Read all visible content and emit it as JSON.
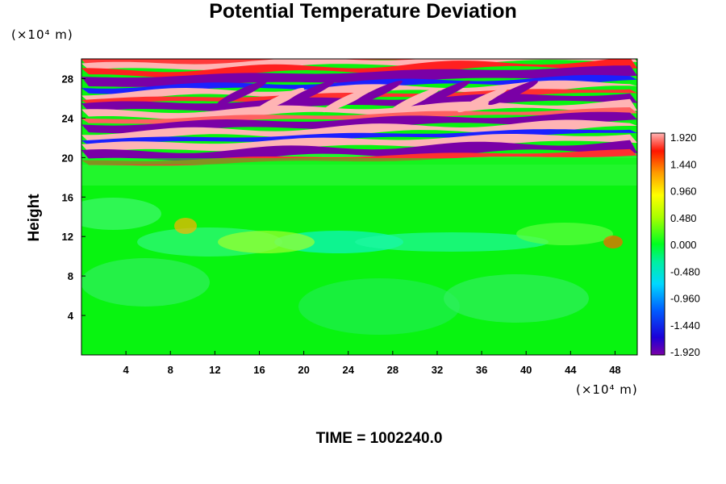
{
  "chart_data": {
    "type": "heatmap",
    "title": "Potential Temperature Deviation",
    "ylabel": "Height",
    "xunit": "(×10⁴ m)",
    "yunit": "(×10⁴ m)",
    "footer": "TIME = 1002240.0",
    "xlim": [
      0,
      50
    ],
    "ylim": [
      0,
      30
    ],
    "xticks": [
      4,
      8,
      12,
      16,
      20,
      24,
      28,
      32,
      36,
      40,
      44,
      48
    ],
    "yticks": [
      4,
      8,
      12,
      16,
      20,
      24,
      28
    ],
    "colorbar": {
      "min": -1.92,
      "max": 1.92,
      "tick_labels": [
        "1.920",
        "1.440",
        "0.960",
        "0.480",
        "0.000",
        "-0.480",
        "-0.960",
        "-1.440",
        "-1.920"
      ]
    }
  }
}
